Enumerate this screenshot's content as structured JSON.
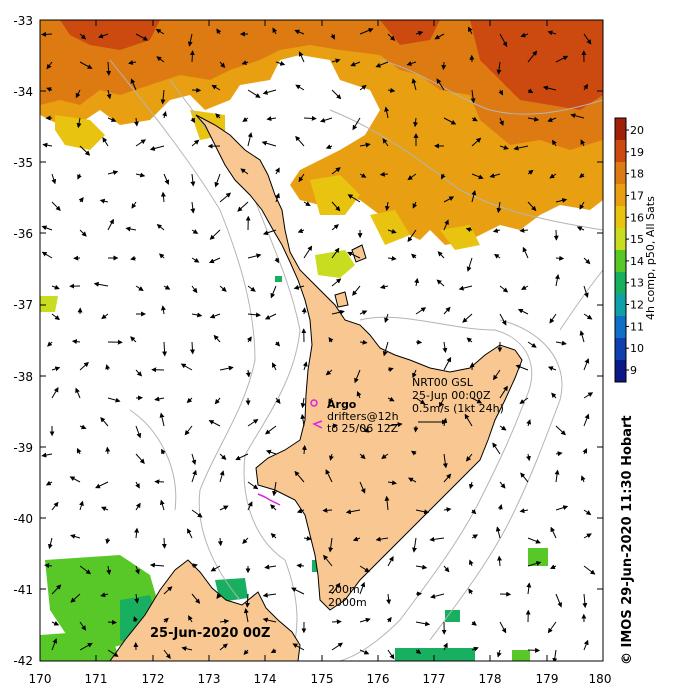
{
  "map": {
    "x_axis_labels": [
      "170",
      "171",
      "172",
      "173",
      "174",
      "175",
      "176",
      "177",
      "178",
      "179",
      "180"
    ],
    "y_axis_labels": [
      "-33",
      "-34",
      "-35",
      "-36",
      "-37",
      "-38",
      "-39",
      "-40",
      "-41",
      "-42"
    ],
    "date_label": "25-Jun-2020 00Z",
    "credit": "© IMOS 29-Jun-2020 11:30 Hobart"
  },
  "colorbar": {
    "title": "4h comp, p50, All Sats",
    "labels": [
      "20",
      "19",
      "18",
      "17",
      "16",
      "15",
      "14",
      "13",
      "12",
      "11",
      "10",
      "9"
    ],
    "colors": {
      "c20": "#a0200a",
      "c19": "#cc4a10",
      "c18": "#de7a12",
      "c17": "#e8a012",
      "c16": "#e8c410",
      "c15": "#c8dc20",
      "c14": "#58c828",
      "c13": "#18b060",
      "c12": "#10a0a8",
      "c11": "#1070c8",
      "c10": "#1040b0",
      "c9": "#0a1888"
    }
  },
  "annotations": {
    "argo": "Argo",
    "drifters_line1": "drifters@12h",
    "drifters_line2": "to 25/06 12Z",
    "gsl_line1": "NRT00 GSL",
    "gsl_line2": "25-Jun 00:00Z",
    "gsl_line3": "0.5m/s (1kt 24h)",
    "contour_200": "200m",
    "contour_2000": "2000m"
  },
  "colors": {
    "land": "#f9c892",
    "land_outline": "#000000",
    "contour": "#b4b4b4",
    "drifter": "#e020e0"
  }
}
